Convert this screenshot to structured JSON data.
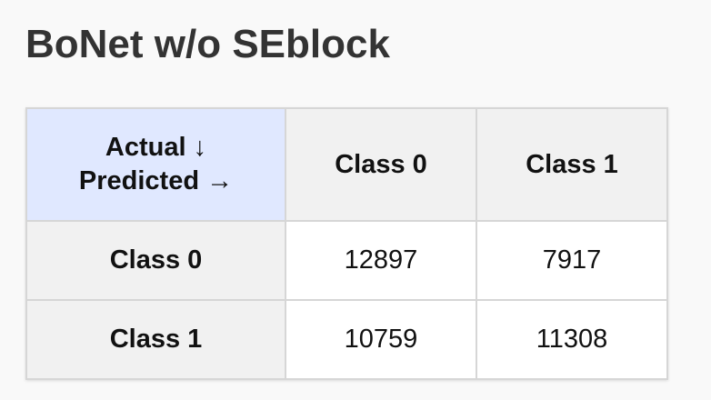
{
  "title": "BoNet w/o SEblock",
  "matrix": {
    "corner_actual": "Actual ↓",
    "corner_predicted": "Predicted →",
    "columns": [
      "Class 0",
      "Class 1"
    ],
    "rows": [
      {
        "label": "Class 0",
        "values": [
          "12897",
          "7917"
        ]
      },
      {
        "label": "Class 1",
        "values": [
          "10759",
          "11308"
        ]
      }
    ]
  },
  "colors": {
    "corner_bg": "#e0e8ff",
    "header_bg": "#f1f1f1",
    "cell_bg": "#ffffff",
    "page_bg": "#f9f9f9"
  }
}
